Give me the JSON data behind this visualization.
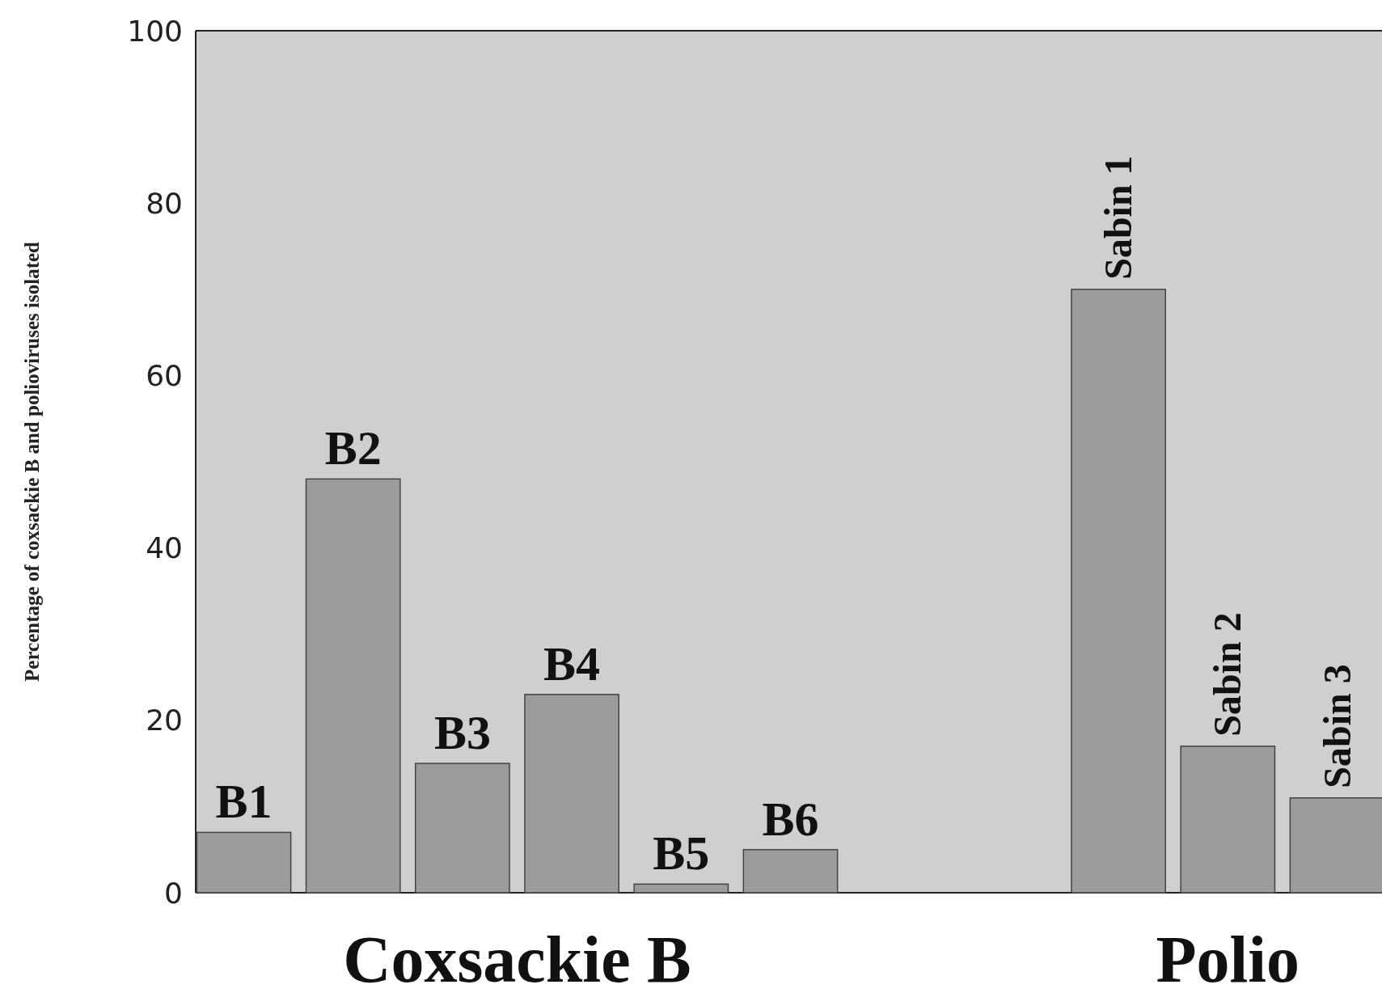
{
  "chart_data": {
    "type": "bar",
    "ylabel": "Percentage of coxsackie B and polioviruses isolated",
    "categories": [
      "B1",
      "B2",
      "B3",
      "B4",
      "B5",
      "B6",
      null,
      null,
      "Sabin 1",
      "Sabin 2",
      "Sabin 3"
    ],
    "values": [
      7,
      48,
      15,
      23,
      1,
      5,
      null,
      null,
      70,
      17,
      11
    ],
    "color": "#9c9c9c",
    "ylim": [
      0,
      100
    ],
    "yticks": [
      0,
      20,
      40,
      60,
      80,
      100
    ],
    "annotations": [
      "Coxsackie B",
      "Polio"
    ]
  }
}
